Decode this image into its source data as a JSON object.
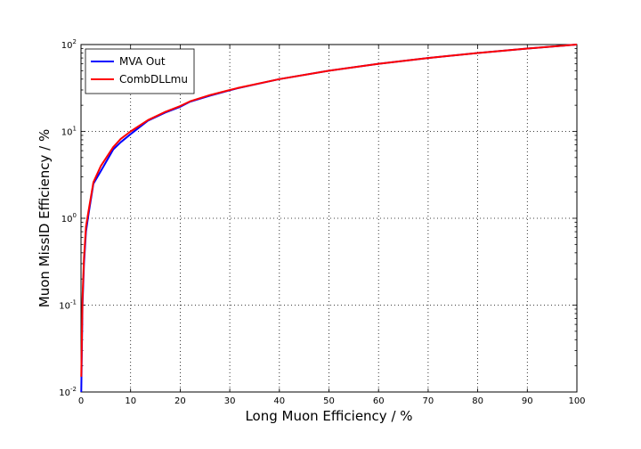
{
  "chart_data": {
    "type": "line",
    "title": "",
    "xlabel": "Long Muon Efficiency / %",
    "ylabel": "Muon MissID Efficiency / %",
    "xlim": [
      0,
      100
    ],
    "ylim": [
      0.01,
      100
    ],
    "yscale": "log",
    "grid": true,
    "legend_position": "top-left",
    "x_ticks": [
      0,
      10,
      20,
      30,
      40,
      50,
      60,
      70,
      80,
      90,
      100
    ],
    "x_tick_labels": [
      "0",
      "10",
      "20",
      "30",
      "40",
      "50",
      "60",
      "70",
      "80",
      "90",
      "100"
    ],
    "y_ticks": [
      0.01,
      0.1,
      1,
      10,
      100
    ],
    "y_tick_labels": [
      {
        "base": "10",
        "exp": "-2"
      },
      {
        "base": "10",
        "exp": "-1"
      },
      {
        "base": "10",
        "exp": "0"
      },
      {
        "base": "10",
        "exp": "1"
      },
      {
        "base": "10",
        "exp": "2"
      }
    ],
    "series": [
      {
        "name": "MVA Out",
        "color": "#0000ff",
        "points": [
          [
            0.05,
            0.01
          ],
          [
            0.3,
            0.1
          ],
          [
            0.6,
            0.3
          ],
          [
            1,
            0.7
          ],
          [
            1.5,
            1.1
          ],
          [
            2.5,
            2.5
          ],
          [
            4,
            3.5
          ],
          [
            6.5,
            6.2
          ],
          [
            8,
            7.5
          ],
          [
            10,
            9.3
          ],
          [
            13.5,
            13.3
          ],
          [
            17,
            16.5
          ],
          [
            20,
            19.2
          ],
          [
            22,
            22
          ],
          [
            26,
            25.8
          ],
          [
            31.5,
            31.3
          ],
          [
            40,
            40
          ],
          [
            50,
            50
          ],
          [
            60,
            60
          ],
          [
            70,
            70
          ],
          [
            80,
            80
          ],
          [
            90,
            90
          ],
          [
            100,
            100
          ]
        ]
      },
      {
        "name": "CombDLLmu",
        "color": "#ff0000",
        "points": [
          [
            0.05,
            0.015
          ],
          [
            0.3,
            0.12
          ],
          [
            0.6,
            0.35
          ],
          [
            1,
            0.8
          ],
          [
            1.5,
            1.2
          ],
          [
            2.5,
            2.6
          ],
          [
            4,
            4.0
          ],
          [
            6.5,
            6.6
          ],
          [
            8,
            8.2
          ],
          [
            10,
            10.0
          ],
          [
            13.5,
            13.5
          ],
          [
            17,
            16.8
          ],
          [
            20,
            19.6
          ],
          [
            22,
            22.2
          ],
          [
            26,
            26.2
          ],
          [
            31.5,
            31.5
          ],
          [
            40,
            40
          ],
          [
            50,
            50
          ],
          [
            60,
            60
          ],
          [
            70,
            70
          ],
          [
            80,
            80
          ],
          [
            90,
            90
          ],
          [
            100,
            100
          ]
        ]
      }
    ]
  }
}
